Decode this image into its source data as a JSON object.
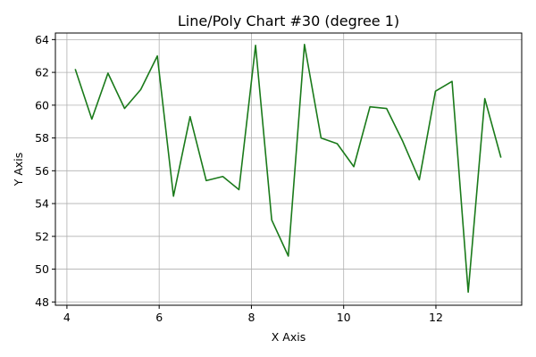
{
  "chart_data": {
    "type": "line",
    "title": "Line/Poly Chart #30 (degree 1)",
    "xlabel": "X Axis",
    "ylabel": "Y Axis",
    "xlim": [
      3.75,
      13.86
    ],
    "ylim": [
      47.8,
      64.4
    ],
    "xticks": [
      4,
      6,
      8,
      10,
      12
    ],
    "yticks": [
      48,
      50,
      52,
      54,
      56,
      58,
      60,
      62,
      64
    ],
    "grid": true,
    "series": [
      {
        "color": "#1a7a1a",
        "x": [
          4.18,
          4.54,
          4.89,
          5.25,
          5.6,
          5.96,
          6.31,
          6.67,
          7.02,
          7.38,
          7.73,
          8.09,
          8.44,
          8.8,
          9.15,
          9.51,
          9.86,
          10.22,
          10.57,
          10.93,
          11.28,
          11.64,
          11.99,
          12.35,
          12.7,
          13.06,
          13.41
        ],
        "y": [
          62.2,
          59.15,
          61.95,
          59.8,
          60.95,
          63.0,
          54.45,
          59.3,
          55.4,
          55.65,
          54.85,
          63.65,
          53.0,
          50.8,
          63.7,
          58.0,
          57.65,
          56.25,
          59.9,
          59.8,
          57.8,
          55.45,
          60.85,
          61.45,
          48.6,
          60.4,
          56.8
        ]
      }
    ]
  }
}
